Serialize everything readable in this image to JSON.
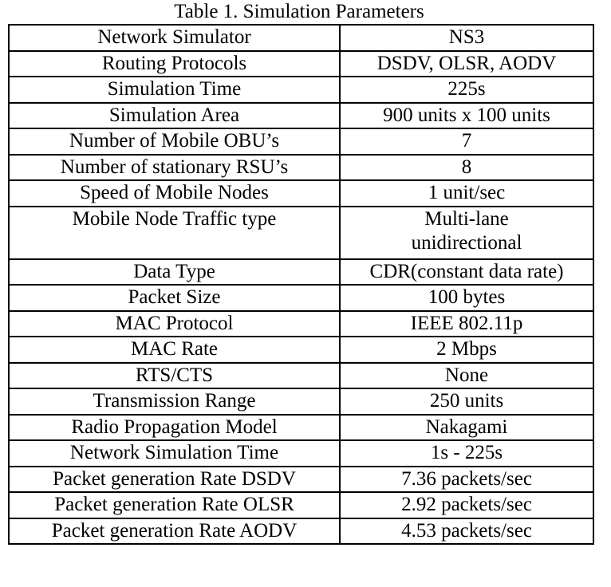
{
  "caption": "Table 1. Simulation Parameters",
  "rows": [
    {
      "parameter": "Network Simulator",
      "value": "NS3"
    },
    {
      "parameter": "Routing Protocols",
      "value": "DSDV, OLSR, AODV"
    },
    {
      "parameter": "Simulation Time",
      "value": "225s"
    },
    {
      "parameter": "Simulation Area",
      "value": "900 units x 100 units"
    },
    {
      "parameter": "Number of Mobile OBU’s",
      "value": "7"
    },
    {
      "parameter": "Number of stationary RSU’s",
      "value": "8"
    },
    {
      "parameter": "Speed of Mobile Nodes",
      "value": "1 unit/sec"
    },
    {
      "parameter": "Mobile Node Traffic type",
      "value_lines": [
        "Multi-lane",
        "unidirectional"
      ]
    },
    {
      "parameter": "Data Type",
      "value": "CDR(constant data rate)"
    },
    {
      "parameter": "Packet Size",
      "value": "100 bytes"
    },
    {
      "parameter": "MAC Protocol",
      "value": "IEEE 802.11p"
    },
    {
      "parameter": "MAC Rate",
      "value": "2 Mbps"
    },
    {
      "parameter": "RTS/CTS",
      "value": "None"
    },
    {
      "parameter": "Transmission Range",
      "value": "250 units"
    },
    {
      "parameter": "Radio Propagation Model",
      "value": "Nakagami"
    },
    {
      "parameter": "Network Simulation Time",
      "value": "1s - 225s"
    },
    {
      "parameter": "Packet generation Rate DSDV",
      "value": "7.36 packets/sec"
    },
    {
      "parameter": "Packet generation Rate OLSR",
      "value": "2.92 packets/sec"
    },
    {
      "parameter": "Packet generation Rate AODV",
      "value": "4.53 packets/sec"
    }
  ]
}
